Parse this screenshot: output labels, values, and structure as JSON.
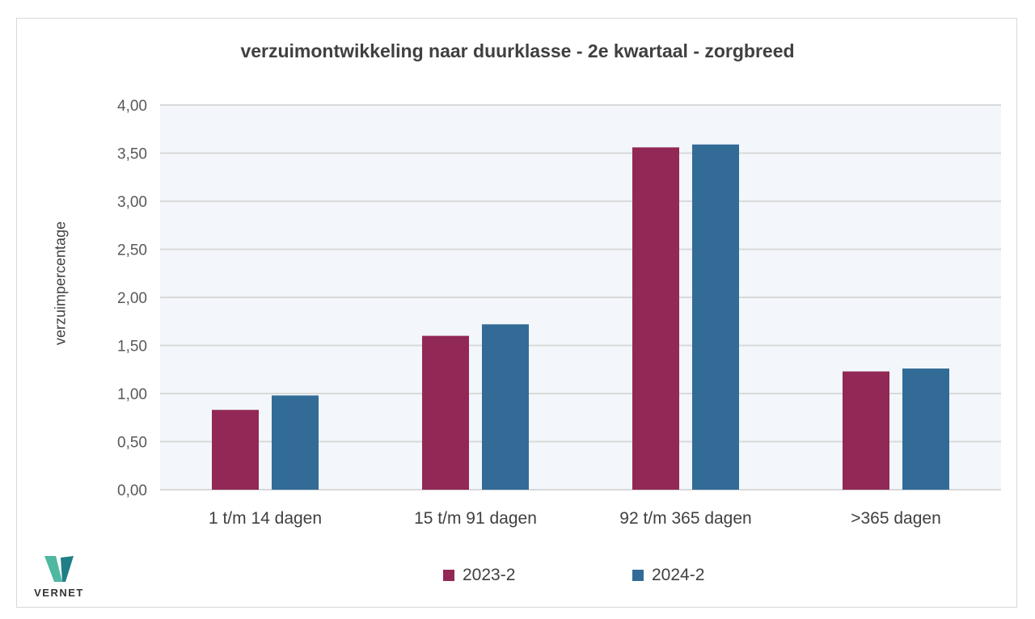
{
  "chart_data": {
    "type": "bar",
    "title": "verzuimontwikkeling naar duurklasse - 2e kwartaal - zorgbreed",
    "xlabel": "",
    "ylabel": "verzuimpercentage",
    "categories": [
      "1 t/m 14 dagen",
      "15 t/m 91 dagen",
      "92 t/m 365 dagen",
      ">365 dagen"
    ],
    "series": [
      {
        "name": "2023-2",
        "color": "#922855",
        "values": [
          0.83,
          1.6,
          3.56,
          1.23
        ]
      },
      {
        "name": "2024-2",
        "color": "#336b97",
        "values": [
          0.98,
          1.72,
          3.59,
          1.26
        ]
      }
    ],
    "ylim": [
      0,
      4
    ],
    "yticks": [
      "0,00",
      "0,50",
      "1,00",
      "1,50",
      "2,00",
      "2,50",
      "3,00",
      "3,50",
      "4,00"
    ],
    "grid": true,
    "legend_position": "bottom"
  },
  "logo": {
    "text": "VERNET",
    "colors": [
      "#4fb8a0",
      "#1f7f86"
    ]
  }
}
